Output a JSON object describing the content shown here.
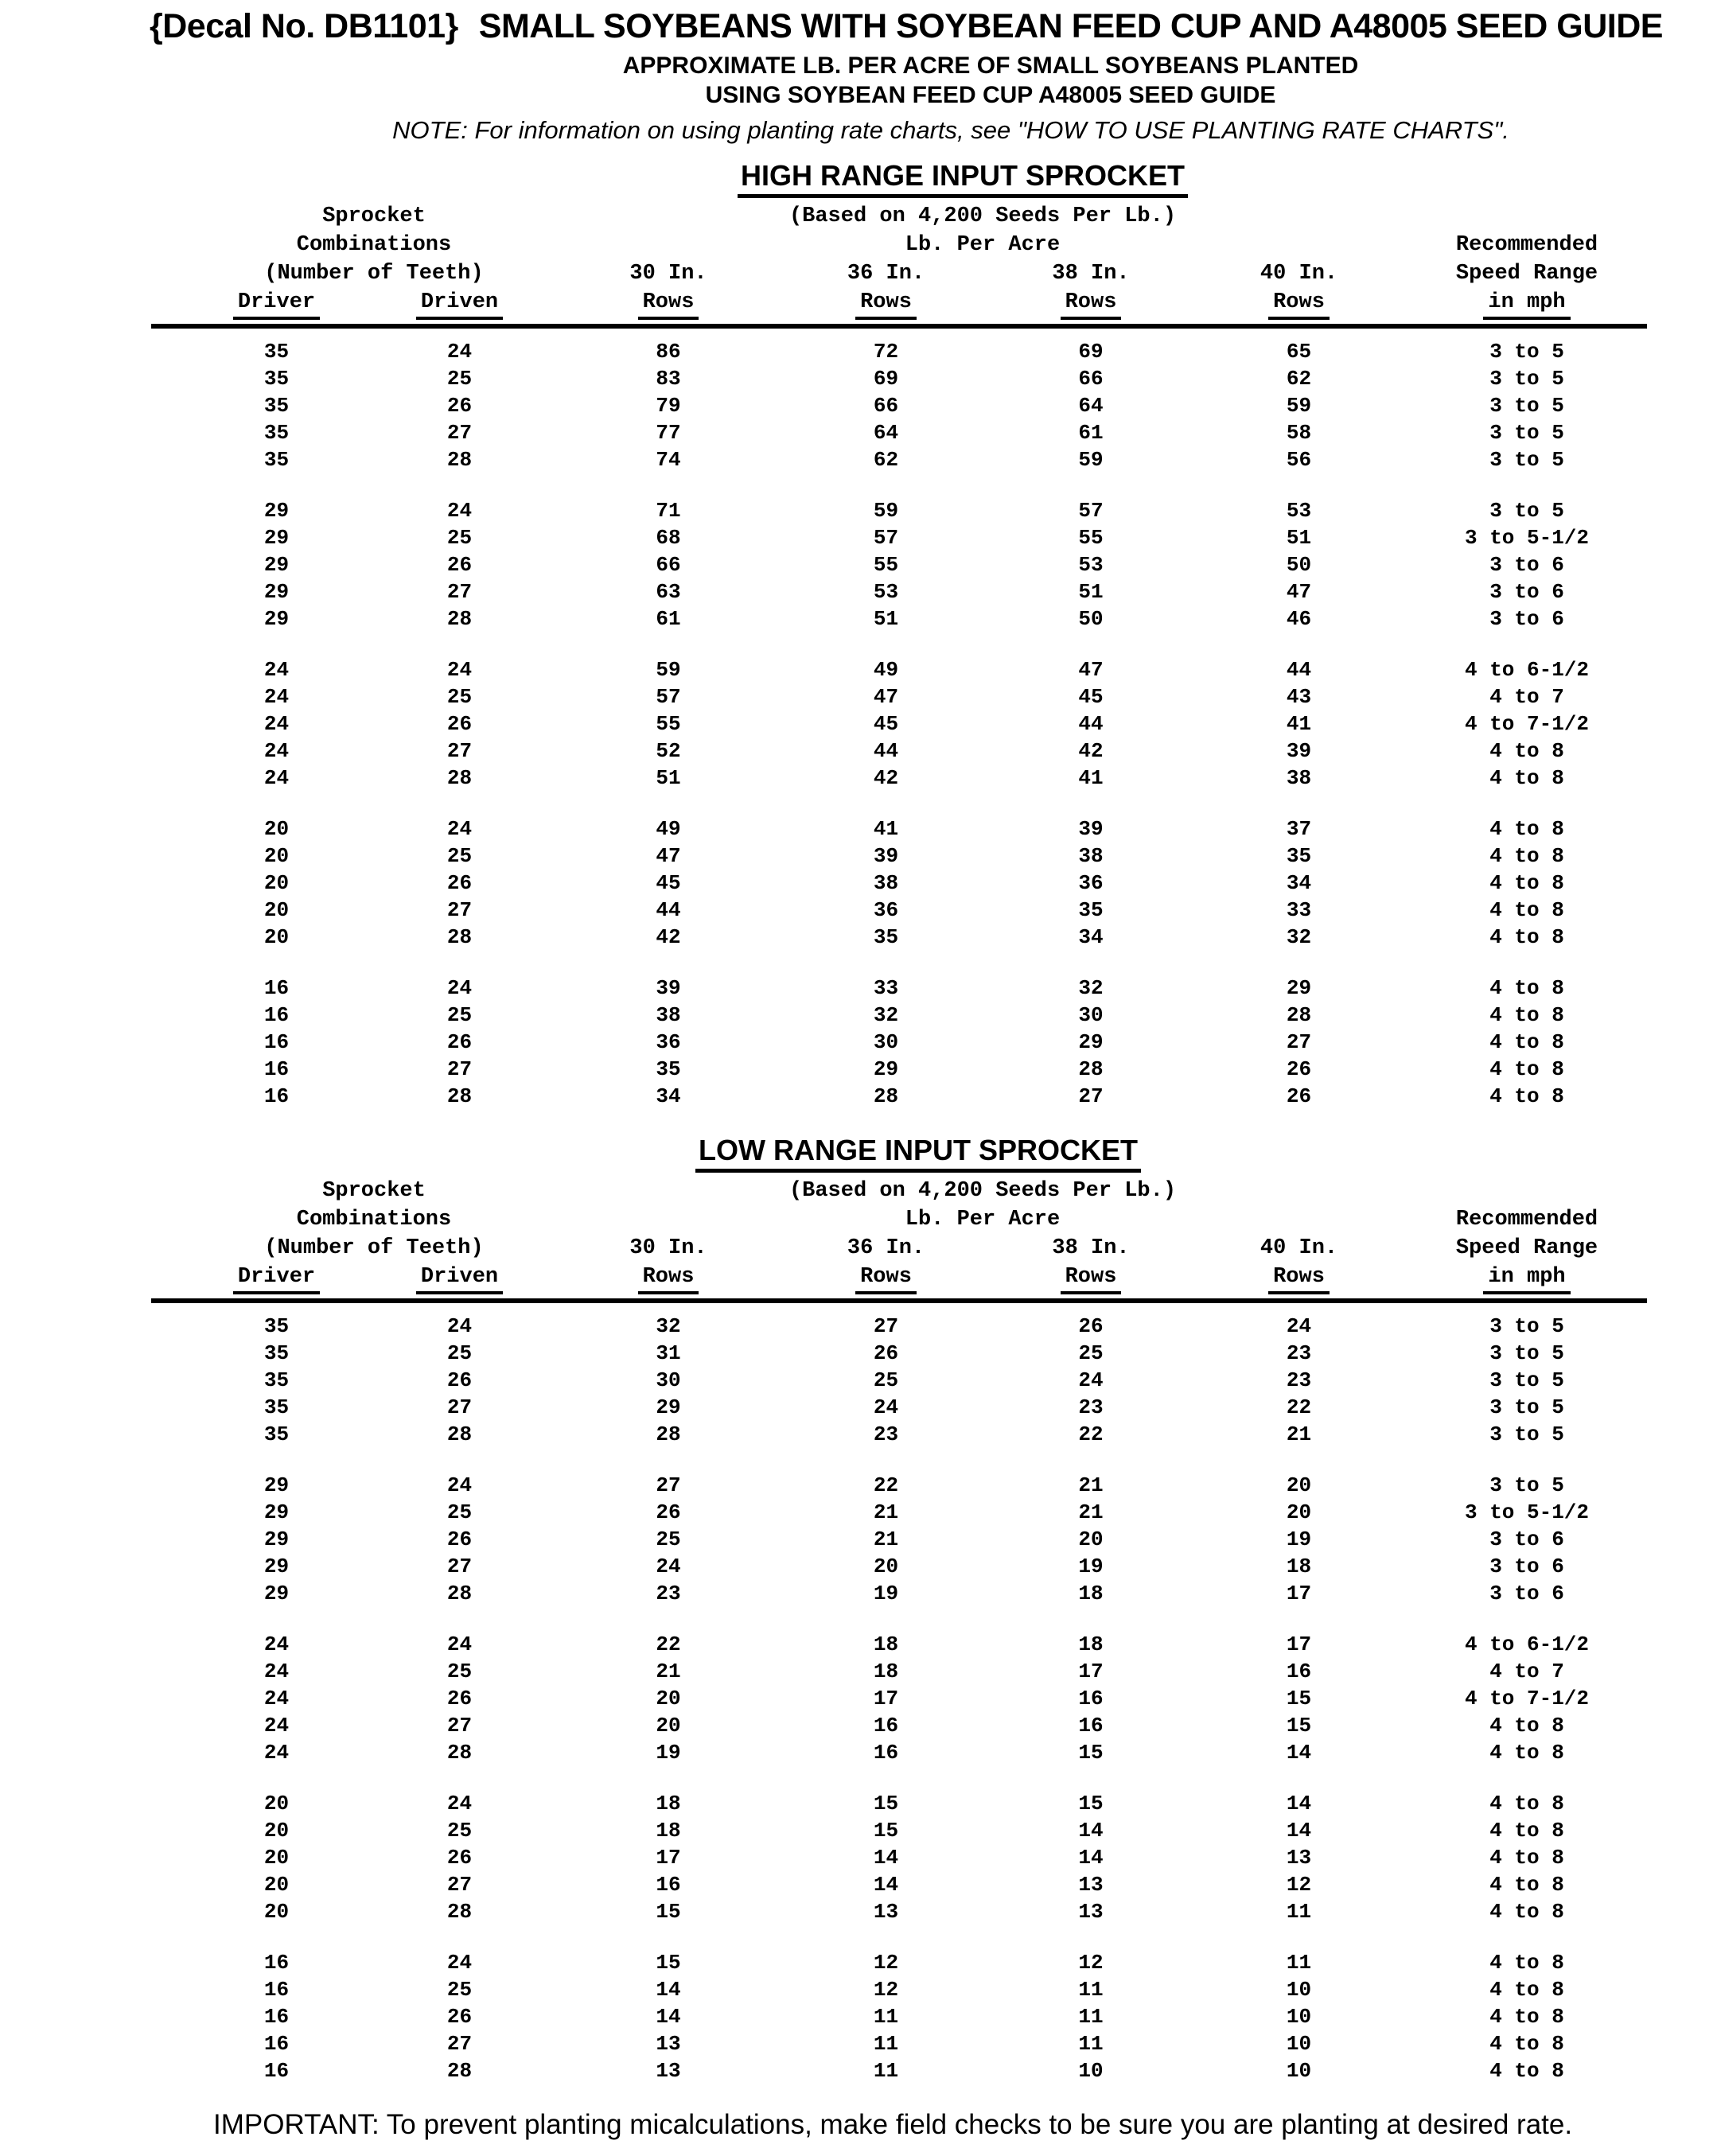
{
  "page": {
    "decal": "{Decal No. DB1101}",
    "title": "SMALL SOYBEANS WITH SOYBEAN FEED CUP AND A48005 SEED GUIDE",
    "subtitle1": "APPROXIMATE LB. PER ACRE OF SMALL SOYBEANS PLANTED",
    "subtitle2": "USING SOYBEAN FEED CUP A48005 SEED GUIDE",
    "note": "NOTE: For information on using planting rate charts, see \"HOW TO USE PLANTING RATE CHARTS\".",
    "footer": "IMPORTANT: To prevent planting micalculations, make field checks to be sure you are planting at desired rate."
  },
  "columns": {
    "sprocket1": "Sprocket",
    "sprocket2": "Combinations",
    "sprocket3": "(Number of Teeth)",
    "driver": "Driver",
    "driven": "Driven",
    "based_on": "(Based on 4,200 Seeds Per Lb.)",
    "lb_per_acre": "Lb. Per Acre",
    "col30": "30 In.",
    "col36": "36 In.",
    "col38": "38 In.",
    "col40": "40 In.",
    "rows_label": "Rows",
    "rec1": "Recommended",
    "rec2": "Speed Range",
    "rec3": "in mph"
  },
  "high_range": {
    "title": "HIGH RANGE INPUT SPROCKET",
    "groups": [
      [
        [
          35,
          24,
          86,
          72,
          69,
          65,
          "3 to 5"
        ],
        [
          35,
          25,
          83,
          69,
          66,
          62,
          "3 to 5"
        ],
        [
          35,
          26,
          79,
          66,
          64,
          59,
          "3 to 5"
        ],
        [
          35,
          27,
          77,
          64,
          61,
          58,
          "3 to 5"
        ],
        [
          35,
          28,
          74,
          62,
          59,
          56,
          "3 to 5"
        ]
      ],
      [
        [
          29,
          24,
          71,
          59,
          57,
          53,
          "3 to 5"
        ],
        [
          29,
          25,
          68,
          57,
          55,
          51,
          "3 to 5-1/2"
        ],
        [
          29,
          26,
          66,
          55,
          53,
          50,
          "3 to 6"
        ],
        [
          29,
          27,
          63,
          53,
          51,
          47,
          "3 to 6"
        ],
        [
          29,
          28,
          61,
          51,
          50,
          46,
          "3 to 6"
        ]
      ],
      [
        [
          24,
          24,
          59,
          49,
          47,
          44,
          "4 to 6-1/2"
        ],
        [
          24,
          25,
          57,
          47,
          45,
          43,
          "4 to 7"
        ],
        [
          24,
          26,
          55,
          45,
          44,
          41,
          "4 to 7-1/2"
        ],
        [
          24,
          27,
          52,
          44,
          42,
          39,
          "4 to 8"
        ],
        [
          24,
          28,
          51,
          42,
          41,
          38,
          "4 to 8"
        ]
      ],
      [
        [
          20,
          24,
          49,
          41,
          39,
          37,
          "4 to 8"
        ],
        [
          20,
          25,
          47,
          39,
          38,
          35,
          "4 to 8"
        ],
        [
          20,
          26,
          45,
          38,
          36,
          34,
          "4 to 8"
        ],
        [
          20,
          27,
          44,
          36,
          35,
          33,
          "4 to 8"
        ],
        [
          20,
          28,
          42,
          35,
          34,
          32,
          "4 to 8"
        ]
      ],
      [
        [
          16,
          24,
          39,
          33,
          32,
          29,
          "4 to 8"
        ],
        [
          16,
          25,
          38,
          32,
          30,
          28,
          "4 to 8"
        ],
        [
          16,
          26,
          36,
          30,
          29,
          27,
          "4 to 8"
        ],
        [
          16,
          27,
          35,
          29,
          28,
          26,
          "4 to 8"
        ],
        [
          16,
          28,
          34,
          28,
          27,
          26,
          "4 to 8"
        ]
      ]
    ]
  },
  "low_range": {
    "title": "LOW RANGE INPUT SPROCKET",
    "groups": [
      [
        [
          35,
          24,
          32,
          27,
          26,
          24,
          "3 to 5"
        ],
        [
          35,
          25,
          31,
          26,
          25,
          23,
          "3 to 5"
        ],
        [
          35,
          26,
          30,
          25,
          24,
          23,
          "3 to 5"
        ],
        [
          35,
          27,
          29,
          24,
          23,
          22,
          "3 to 5"
        ],
        [
          35,
          28,
          28,
          23,
          22,
          21,
          "3 to 5"
        ]
      ],
      [
        [
          29,
          24,
          27,
          22,
          21,
          20,
          "3 to 5"
        ],
        [
          29,
          25,
          26,
          21,
          21,
          20,
          "3 to 5-1/2"
        ],
        [
          29,
          26,
          25,
          21,
          20,
          19,
          "3 to 6"
        ],
        [
          29,
          27,
          24,
          20,
          19,
          18,
          "3 to 6"
        ],
        [
          29,
          28,
          23,
          19,
          18,
          17,
          "3 to 6"
        ]
      ],
      [
        [
          24,
          24,
          22,
          18,
          18,
          17,
          "4 to 6-1/2"
        ],
        [
          24,
          25,
          21,
          18,
          17,
          16,
          "4 to 7"
        ],
        [
          24,
          26,
          20,
          17,
          16,
          15,
          "4 to 7-1/2"
        ],
        [
          24,
          27,
          20,
          16,
          16,
          15,
          "4 to 8"
        ],
        [
          24,
          28,
          19,
          16,
          15,
          14,
          "4 to 8"
        ]
      ],
      [
        [
          20,
          24,
          18,
          15,
          15,
          14,
          "4 to 8"
        ],
        [
          20,
          25,
          18,
          15,
          14,
          14,
          "4 to 8"
        ],
        [
          20,
          26,
          17,
          14,
          14,
          13,
          "4 to 8"
        ],
        [
          20,
          27,
          16,
          14,
          13,
          12,
          "4 to 8"
        ],
        [
          20,
          28,
          15,
          13,
          13,
          11,
          "4 to 8"
        ]
      ],
      [
        [
          16,
          24,
          15,
          12,
          12,
          11,
          "4 to 8"
        ],
        [
          16,
          25,
          14,
          12,
          11,
          10,
          "4 to 8"
        ],
        [
          16,
          26,
          14,
          11,
          11,
          10,
          "4 to 8"
        ],
        [
          16,
          27,
          13,
          11,
          11,
          10,
          "4 to 8"
        ],
        [
          16,
          28,
          13,
          11,
          10,
          10,
          "4 to 8"
        ]
      ]
    ]
  }
}
